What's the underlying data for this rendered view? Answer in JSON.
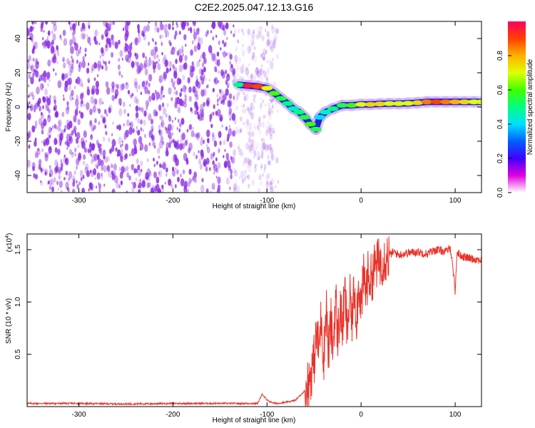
{
  "title": "C2E2.2025.047.12.13.G16",
  "chart_data": [
    {
      "type": "heatmap",
      "xlabel": "Height of straight line (km)",
      "ylabel": "Frequency (Hz)",
      "xlim": [
        -355,
        128
      ],
      "ylim": [
        -50,
        50
      ],
      "xticks": [
        -300,
        -200,
        -100,
        0,
        100
      ],
      "yticks": [
        -40,
        -20,
        0,
        20,
        40
      ],
      "colorbar": {
        "label": "Normalized spectral amplitude",
        "range": [
          0,
          1
        ],
        "ticks": [
          "0.0",
          "0.2",
          "0.4",
          "0.6",
          "0.8"
        ],
        "colormap": [
          "#ffffff",
          "#e000e0",
          "#4000ff",
          "#0060ff",
          "#00e0ff",
          "#00ff80",
          "#40ff00",
          "#e0ff00",
          "#ffb000",
          "#ff4000",
          "#ff0060"
        ]
      },
      "noise_region": {
        "x_range": [
          -355,
          -88
        ],
        "color": "#8a2be2"
      },
      "signal_track": [
        {
          "x": -130,
          "y": 13,
          "amp": 0.5
        },
        {
          "x": -120,
          "y": 12.5,
          "amp": 0.95
        },
        {
          "x": -110,
          "y": 12,
          "amp": 0.9
        },
        {
          "x": -100,
          "y": 11,
          "amp": 0.7
        },
        {
          "x": -92,
          "y": 8,
          "amp": 0.6
        },
        {
          "x": -85,
          "y": 5,
          "amp": 0.55
        },
        {
          "x": -78,
          "y": 2,
          "amp": 0.5
        },
        {
          "x": -72,
          "y": -1,
          "amp": 0.45
        },
        {
          "x": -66,
          "y": -3,
          "amp": 0.5
        },
        {
          "x": -60,
          "y": -6,
          "amp": 0.55
        },
        {
          "x": -54,
          "y": -10,
          "amp": 0.6
        },
        {
          "x": -48,
          "y": -13,
          "amp": 0.55
        },
        {
          "x": -44,
          "y": -6,
          "amp": 0.4
        },
        {
          "x": -38,
          "y": -3,
          "amp": 0.45
        },
        {
          "x": -30,
          "y": -1,
          "amp": 0.5
        },
        {
          "x": -20,
          "y": 1,
          "amp": 0.55
        },
        {
          "x": -10,
          "y": 1,
          "amp": 0.6
        },
        {
          "x": 0,
          "y": 1.5,
          "amp": 0.7
        },
        {
          "x": 10,
          "y": 1.5,
          "amp": 0.75
        },
        {
          "x": 20,
          "y": 1.8,
          "amp": 0.75
        },
        {
          "x": 30,
          "y": 2,
          "amp": 0.7
        },
        {
          "x": 40,
          "y": 2,
          "amp": 0.7
        },
        {
          "x": 50,
          "y": 2.2,
          "amp": 0.7
        },
        {
          "x": 60,
          "y": 2.5,
          "amp": 0.75
        },
        {
          "x": 70,
          "y": 3,
          "amp": 0.85
        },
        {
          "x": 80,
          "y": 3,
          "amp": 0.9
        },
        {
          "x": 90,
          "y": 3,
          "amp": 0.85
        },
        {
          "x": 100,
          "y": 3,
          "amp": 0.8
        },
        {
          "x": 110,
          "y": 3,
          "amp": 0.75
        },
        {
          "x": 120,
          "y": 3,
          "amp": 0.7
        },
        {
          "x": 128,
          "y": 3,
          "amp": 0.7
        }
      ]
    },
    {
      "type": "line",
      "xlabel": "Height of straight line (km)",
      "ylabel": "SNR (10 * v/v)",
      "yscale_label": "(x10",
      "yscale_exp": "4",
      "yscale_close": ")",
      "xlim": [
        -355,
        128
      ],
      "ylim": [
        0,
        1.65
      ],
      "xticks": [
        -300,
        -200,
        -100,
        0,
        100
      ],
      "yticks": [
        "0.5",
        "1.0",
        "1.5"
      ],
      "line_color": "#e8332a",
      "series": [
        {
          "x": [
            -355,
            -300,
            -250,
            -200,
            -150,
            -110,
            -105,
            -100,
            -95,
            -90,
            -80,
            -70,
            -60,
            -55,
            -50,
            -47,
            -45,
            -42,
            -40,
            -37,
            -35,
            -32,
            -30,
            -27,
            -25,
            -22,
            -20,
            -17,
            -15,
            -12,
            -10,
            -7,
            -5,
            -2,
            0,
            3,
            5,
            8,
            10,
            15,
            20,
            25,
            30,
            35,
            40,
            50,
            60,
            70,
            80,
            90,
            95,
            98,
            100,
            102,
            105,
            110,
            115,
            120,
            128
          ],
          "y": [
            0.03,
            0.03,
            0.025,
            0.03,
            0.03,
            0.03,
            0.12,
            0.06,
            0.04,
            0.03,
            0.04,
            0.06,
            0.15,
            0.25,
            0.45,
            0.7,
            0.55,
            0.9,
            0.4,
            1.0,
            0.5,
            0.8,
            0.55,
            1.05,
            0.65,
            0.95,
            0.75,
            1.1,
            0.7,
            1.05,
            0.8,
            1.15,
            0.85,
            1.2,
            0.95,
            1.25,
            1.1,
            1.3,
            1.2,
            1.35,
            1.38,
            1.42,
            1.45,
            1.48,
            1.45,
            1.47,
            1.48,
            1.46,
            1.5,
            1.48,
            1.52,
            1.3,
            1.1,
            1.48,
            1.45,
            1.43,
            1.42,
            1.41,
            1.4
          ]
        }
      ]
    }
  ]
}
